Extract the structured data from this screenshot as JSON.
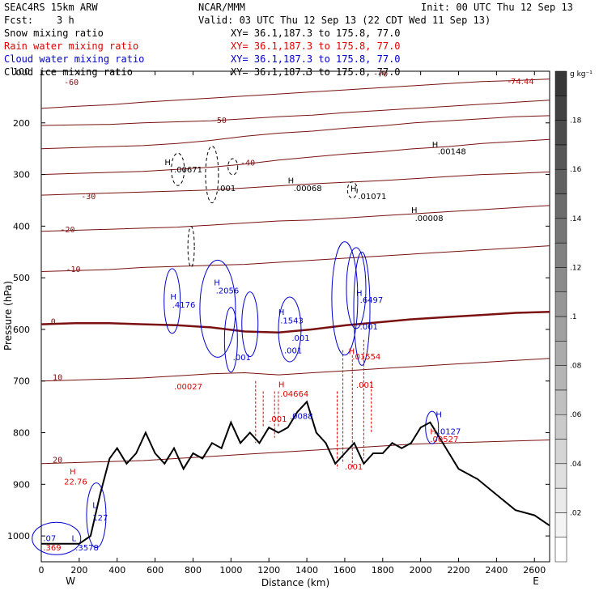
{
  "header": {
    "model": "SEAC4RS 15km ARW",
    "center": "NCAR/MMM",
    "init": "Init: 00 UTC Thu 12 Sep 13",
    "fcst_label": "Fcst:",
    "fcst_value": "3 h",
    "valid": "Valid: 03 UTC Thu 12 Sep 13 (22 CDT Wed 11 Sep 13)",
    "fields": [
      {
        "name": "Snow mixing ratio",
        "xy": "XY=  36.1,187.3 to 175.8, 77.0",
        "color": "#000000"
      },
      {
        "name": "Rain water mixing ratio",
        "xy": "XY=  36.1,187.3 to 175.8, 77.0",
        "color": "#e00000"
      },
      {
        "name": "Cloud water mixing ratio",
        "xy": "XY=  36.1,187.3 to 175.8, 77.0",
        "color": "#0000d0"
      },
      {
        "name": "Cloud ice mixing ratio",
        "xy": "XY=  36.1,187.3 to 175.8, 77.0",
        "color": "#000000"
      }
    ]
  },
  "colors": {
    "temperature": "#7a1010",
    "freezing": "#7a1010",
    "rain": "#e00000",
    "cloud_water": "#0000d0",
    "snow": "#000000",
    "terrain": "#000000"
  },
  "chart_data": {
    "type": "cross-section",
    "xlabel": "Distance (km)",
    "ylabel": "Pressure (hPa)",
    "xlim": [
      0,
      2680
    ],
    "ylim": [
      1050,
      100
    ],
    "x_ticks": [
      "0",
      "200",
      "400",
      "600",
      "800",
      "1000",
      "1200",
      "1400",
      "1600",
      "1800",
      "2000",
      "2200",
      "2400",
      "2600"
    ],
    "x_tick_values": [
      0,
      200,
      400,
      600,
      800,
      1000,
      1200,
      1400,
      1600,
      1800,
      2000,
      2200,
      2400,
      2600
    ],
    "y_ticks": [
      "200",
      "300",
      "400",
      "500",
      "600",
      "700",
      "800",
      "900",
      "1000"
    ],
    "y_tick_values": [
      200,
      300,
      400,
      500,
      600,
      700,
      800,
      900,
      1000
    ],
    "y_top_label": "100",
    "left_end": "W",
    "right_end": "E",
    "colorbar": {
      "units": "g kg⁻¹",
      "ticks": [
        ".02",
        ".04",
        ".06",
        ".08",
        ".1",
        ".12",
        ".14",
        ".16",
        ".18"
      ],
      "tick_values": [
        0.02,
        0.04,
        0.06,
        0.08,
        0.1,
        0.12,
        0.14,
        0.16,
        0.18
      ],
      "range": [
        0,
        0.2
      ]
    },
    "isotherms": [
      {
        "label": "-70",
        "p": [
          172,
          168,
          165,
          160,
          156,
          152,
          148,
          144,
          140,
          136,
          132,
          128,
          124,
          120,
          118,
          115
        ],
        "lx": 1750,
        "lp": 110
      },
      {
        "label": "-60",
        "p": [
          205,
          204,
          203,
          200,
          198,
          196,
          192,
          188,
          185,
          180,
          176,
          172,
          168,
          164,
          160,
          156
        ],
        "lx": 120,
        "lp": 127
      },
      {
        "label": "-50",
        "p": [
          250,
          248,
          246,
          244,
          240,
          234,
          226,
          220,
          216,
          210,
          206,
          200,
          196,
          192,
          188,
          186
        ],
        "lx": 900,
        "lp": 200
      },
      {
        "label": "-40",
        "p": [
          300,
          298,
          296,
          294,
          290,
          286,
          280,
          272,
          266,
          260,
          256,
          250,
          246,
          240,
          236,
          232
        ],
        "lx": 1050,
        "lp": 283
      },
      {
        "label": "-30",
        "p": [
          340,
          338,
          336,
          334,
          332,
          330,
          326,
          322,
          318,
          315,
          312,
          308,
          304,
          300,
          298,
          295
        ],
        "lx": 210,
        "lp": 348
      },
      {
        "label": "-20",
        "p": [
          410,
          408,
          406,
          404,
          402,
          398,
          394,
          390,
          388,
          384,
          380,
          376,
          372,
          368,
          364,
          360
        ],
        "lx": 100,
        "lp": 412
      },
      {
        "label": "-10",
        "p": [
          488,
          486,
          484,
          480,
          478,
          476,
          474,
          470,
          466,
          462,
          458,
          454,
          450,
          446,
          442,
          438
        ],
        "lx": 130,
        "lp": 489
      },
      {
        "label": "0",
        "p": [
          590,
          588,
          588,
          590,
          592,
          596,
          604,
          606,
          600,
          592,
          586,
          580,
          576,
          572,
          568,
          566
        ],
        "lx": 50,
        "lp": 590,
        "bold": true
      },
      {
        "label": "10",
        "p": [
          700,
          698,
          696,
          694,
          690,
          686,
          684,
          688,
          684,
          680,
          676,
          672,
          668,
          664,
          660,
          656
        ],
        "lx": 60,
        "lp": 698
      },
      {
        "label": "20",
        "p": [
          860,
          858,
          856,
          854,
          850,
          846,
          842,
          838,
          834,
          830,
          826,
          822,
          820,
          818,
          816,
          814
        ],
        "lx": 60,
        "lp": 858
      }
    ],
    "rain_labels": [
      {
        "text": "H",
        "x": 1250,
        "p": 712
      },
      {
        "text": ".04664",
        "x": 1260,
        "p": 730
      },
      {
        "text": ".001",
        "x": 1200,
        "p": 779
      },
      {
        "text": ".00027",
        "x": 700,
        "p": 716
      },
      {
        "text": "H",
        "x": 1620,
        "p": 648
      },
      {
        "text": ".01554",
        "x": 1640,
        "p": 658
      },
      {
        "text": ".001",
        "x": 1660,
        "p": 713
      },
      {
        "text": ".001",
        "x": 1600,
        "p": 871
      },
      {
        "text": "H",
        "x": 2050,
        "p": 803
      },
      {
        "text": ".00527",
        "x": 2050,
        "p": 818
      },
      {
        "text": "H",
        "x": 150,
        "p": 881
      },
      {
        "text": "22.76",
        "x": 120,
        "p": 900
      },
      {
        "text": ".369",
        "x": 10,
        "p": 1028
      },
      {
        "text": "-74.44",
        "x": 2460,
        "p": 125
      }
    ],
    "cloud_labels": [
      {
        "text": "H",
        "x": 680,
        "p": 542
      },
      {
        "text": ".4176",
        "x": 690,
        "p": 558
      },
      {
        "text": "H",
        "x": 910,
        "p": 515
      },
      {
        "text": ".2056",
        "x": 920,
        "p": 530
      },
      {
        "text": "H",
        "x": 1250,
        "p": 572
      },
      {
        "text": ".1543",
        "x": 1260,
        "p": 588
      },
      {
        "text": ".001",
        "x": 1010,
        "p": 660
      },
      {
        "text": ".001",
        "x": 1320,
        "p": 622
      },
      {
        "text": ".001",
        "x": 1280,
        "p": 646
      },
      {
        "text": "H",
        "x": 1660,
        "p": 535
      },
      {
        "text": ".6497",
        "x": 1680,
        "p": 548
      },
      {
        "text": ".001",
        "x": 1680,
        "p": 600
      },
      {
        "text": ".0088",
        "x": 1310,
        "p": 773
      },
      {
        "text": "H",
        "x": 2080,
        "p": 770
      },
      {
        "text": ".0127",
        "x": 2090,
        "p": 803
      },
      {
        "text": "L",
        "x": 270,
        "p": 946
      },
      {
        "text": "127",
        "x": 270,
        "p": 970
      },
      {
        "text": "L",
        "x": 160,
        "p": 1010
      },
      {
        "text": ".3578",
        "x": 180,
        "p": 1028
      },
      {
        "text": ".07",
        "x": 10,
        "p": 1010
      }
    ],
    "ice_labels": [
      {
        "text": "H",
        "x": 650,
        "p": 282
      },
      {
        "text": ".00671",
        "x": 700,
        "p": 296
      },
      {
        "text": ".001",
        "x": 930,
        "p": 332
      },
      {
        "text": "H",
        "x": 1300,
        "p": 317
      },
      {
        "text": ".00068",
        "x": 1330,
        "p": 332
      },
      {
        "text": "H",
        "x": 1630,
        "p": 333
      },
      {
        "text": ".01071",
        "x": 1670,
        "p": 348
      },
      {
        "text": "H",
        "x": 1950,
        "p": 374
      },
      {
        "text": ".00008",
        "x": 1970,
        "p": 390
      },
      {
        "text": "H",
        "x": 2060,
        "p": 247
      },
      {
        "text": ".00148",
        "x": 2090,
        "p": 261
      }
    ],
    "terrain_km": [
      0,
      100,
      200,
      260,
      310,
      360,
      400,
      450,
      500,
      550,
      600,
      650,
      700,
      750,
      800,
      850,
      900,
      950,
      1000,
      1050,
      1100,
      1150,
      1200,
      1250,
      1300,
      1350,
      1400,
      1450,
      1500,
      1550,
      1600,
      1650,
      1700,
      1750,
      1800,
      1850,
      1900,
      1950,
      2000,
      2050,
      2100,
      2150,
      2200,
      2300,
      2400,
      2500,
      2600,
      2680
    ],
    "terrain_p": [
      1015,
      1015,
      1015,
      1000,
      920,
      850,
      830,
      860,
      840,
      800,
      840,
      860,
      830,
      870,
      840,
      850,
      820,
      830,
      780,
      820,
      800,
      820,
      790,
      800,
      790,
      760,
      740,
      800,
      820,
      860,
      840,
      820,
      860,
      840,
      840,
      820,
      830,
      820,
      790,
      780,
      810,
      840,
      870,
      890,
      920,
      950,
      960,
      980
    ]
  }
}
